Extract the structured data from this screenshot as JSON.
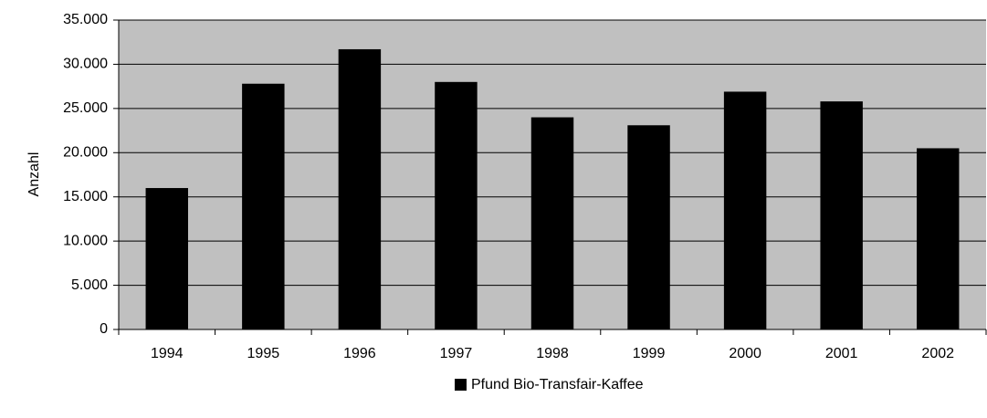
{
  "chart_data": {
    "type": "bar",
    "y_label": "Anzahl",
    "categories": [
      "1994",
      "1995",
      "1996",
      "1997",
      "1998",
      "1999",
      "2000",
      "2001",
      "2002"
    ],
    "series": [
      {
        "name": "Pfund Bio-Transfair-Kaffee",
        "color": "#000000",
        "values": [
          16000,
          27800,
          31700,
          28000,
          24000,
          23100,
          26900,
          25800,
          20500
        ]
      }
    ],
    "ylim": [
      0,
      35000
    ],
    "yticks": [
      0,
      {
        "value": 5000,
        "label": "5.000"
      },
      {
        "value": 10000,
        "label": "10.000"
      },
      {
        "value": 15000,
        "label": "15.000"
      },
      {
        "value": 20000,
        "label": "20.000"
      },
      {
        "value": 25000,
        "label": "25.000"
      },
      {
        "value": 30000,
        "label": "30.000"
      },
      {
        "value": 35000,
        "label": "35.000"
      }
    ],
    "grid": true,
    "legend": "bottom"
  }
}
